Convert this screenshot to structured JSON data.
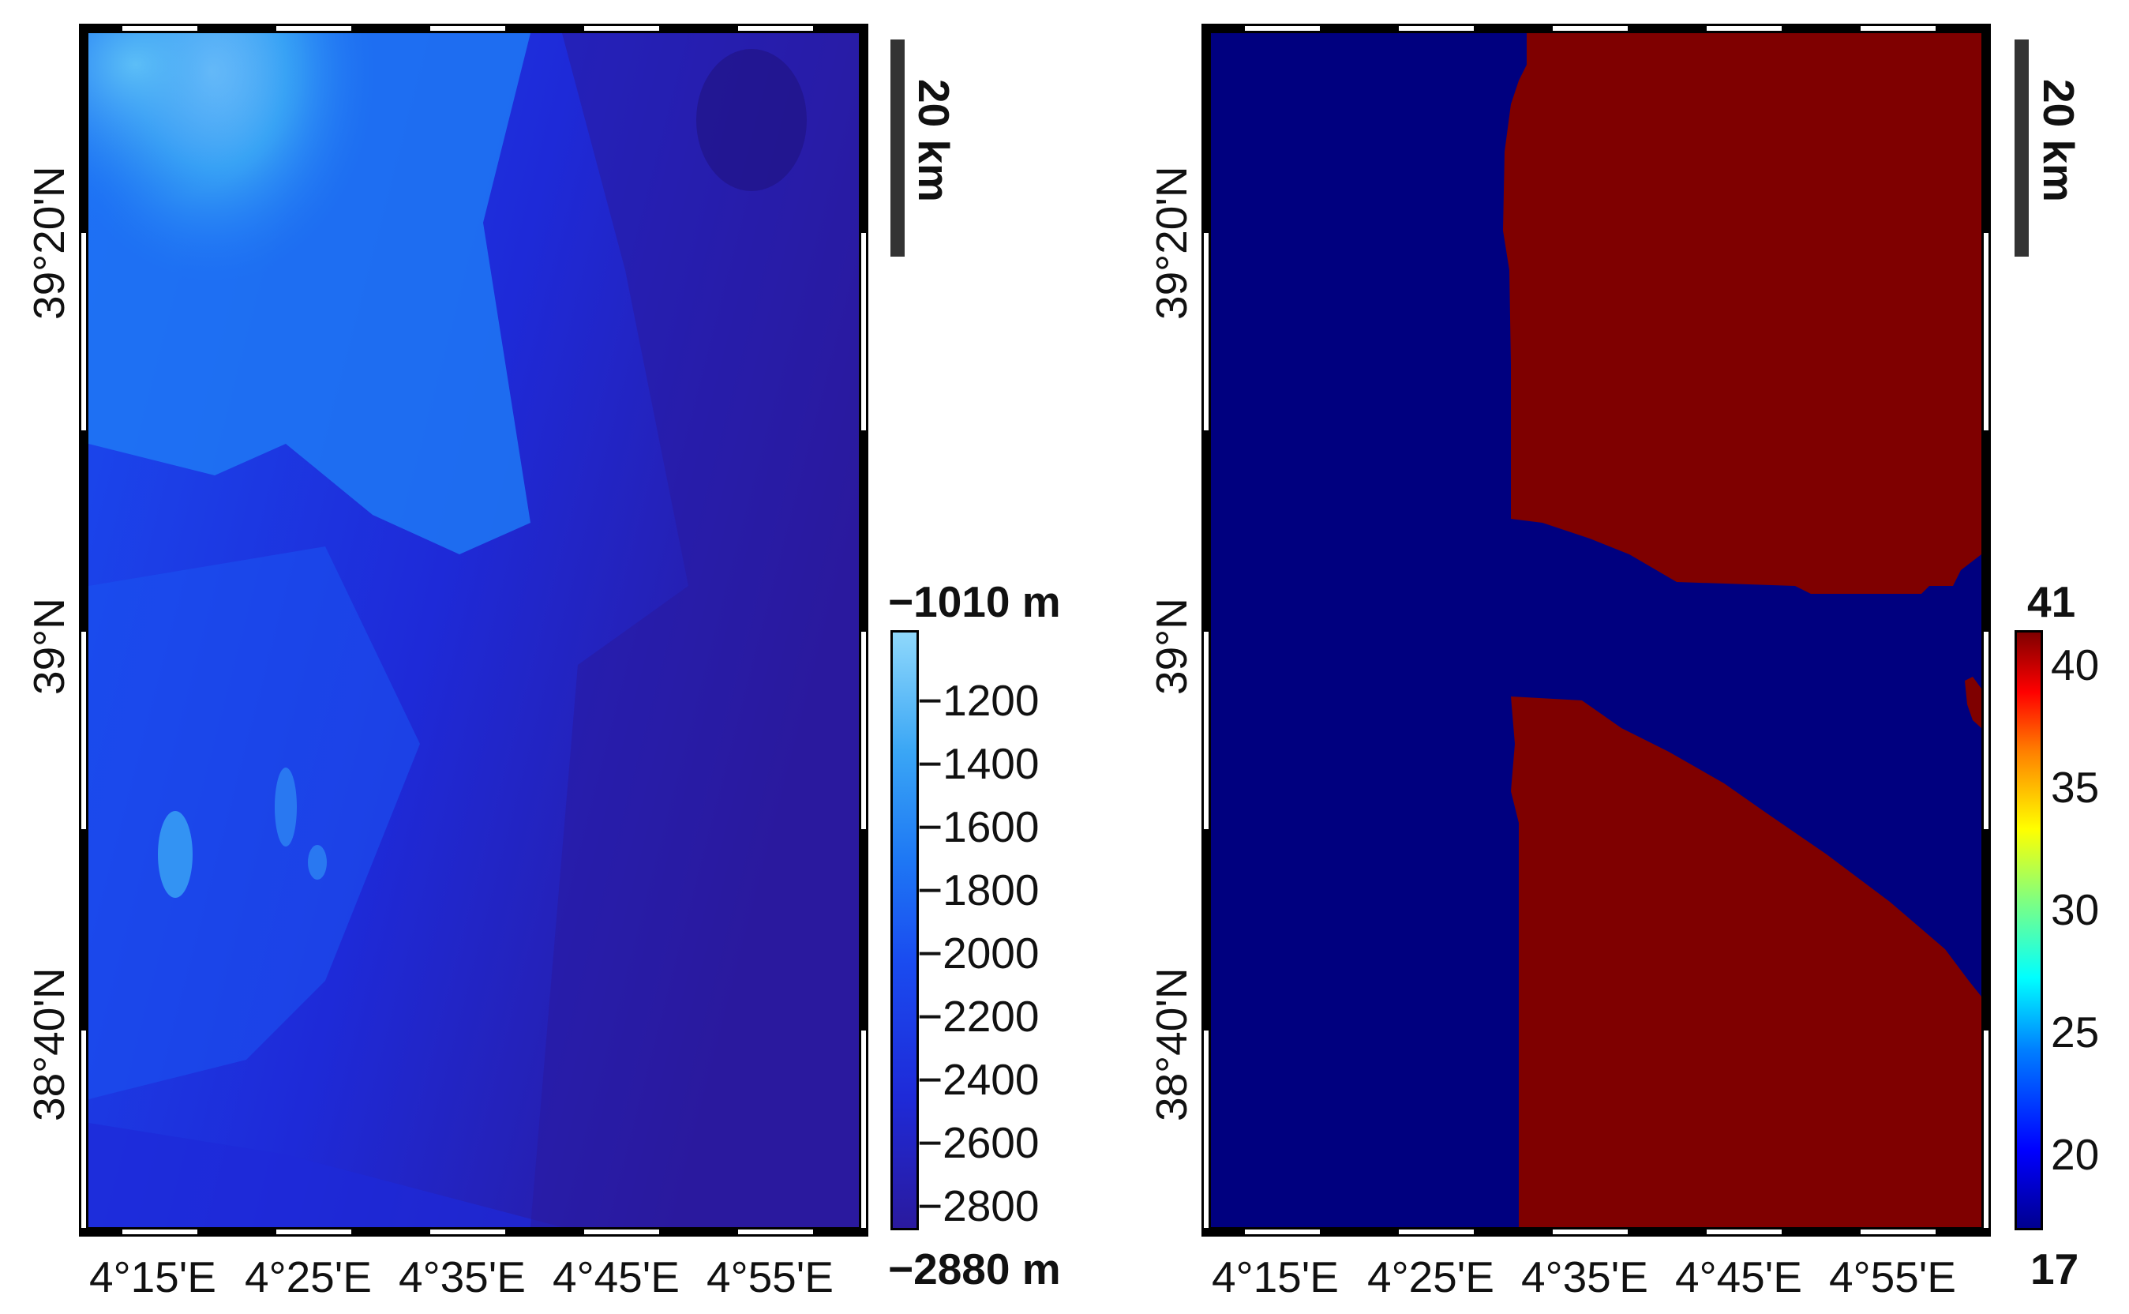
{
  "left_map": {
    "x_ticks": [
      "4°15'E",
      "4°25'E",
      "4°35'E",
      "4°45'E",
      "4°55'E"
    ],
    "y_ticks": [
      "39°20'N",
      "39°N",
      "38°40'N"
    ],
    "scale_bar": "20 km",
    "colorbar": {
      "max_label": "−1010 m",
      "min_label": "−2880 m",
      "ticks": [
        "−1200",
        "−1400",
        "−1600",
        "−1800",
        "−2000",
        "−2200",
        "−2400",
        "−2600",
        "−2800"
      ],
      "colors": [
        "#2a1a9e",
        "#1e2ad8",
        "#1a4cf0",
        "#1e78f4",
        "#3aa6f5",
        "#8fd8fb"
      ]
    }
  },
  "right_map": {
    "x_ticks": [
      "4°15'E",
      "4°25'E",
      "4°35'E",
      "4°45'E",
      "4°55'E"
    ],
    "y_ticks": [
      "39°20'N",
      "39°N",
      "38°40'N"
    ],
    "scale_bar": "20 km",
    "colorbar": {
      "max_label": "41",
      "min_label": "17",
      "ticks": [
        "40",
        "35",
        "30",
        "25",
        "20"
      ],
      "colors": [
        "#00008f",
        "#0000ff",
        "#0080ff",
        "#00ffff",
        "#80ff80",
        "#ffff00",
        "#ff8000",
        "#ff0000",
        "#800000"
      ]
    },
    "classes": {
      "low_color": "#00007f",
      "high_color": "#7f0000"
    }
  }
}
